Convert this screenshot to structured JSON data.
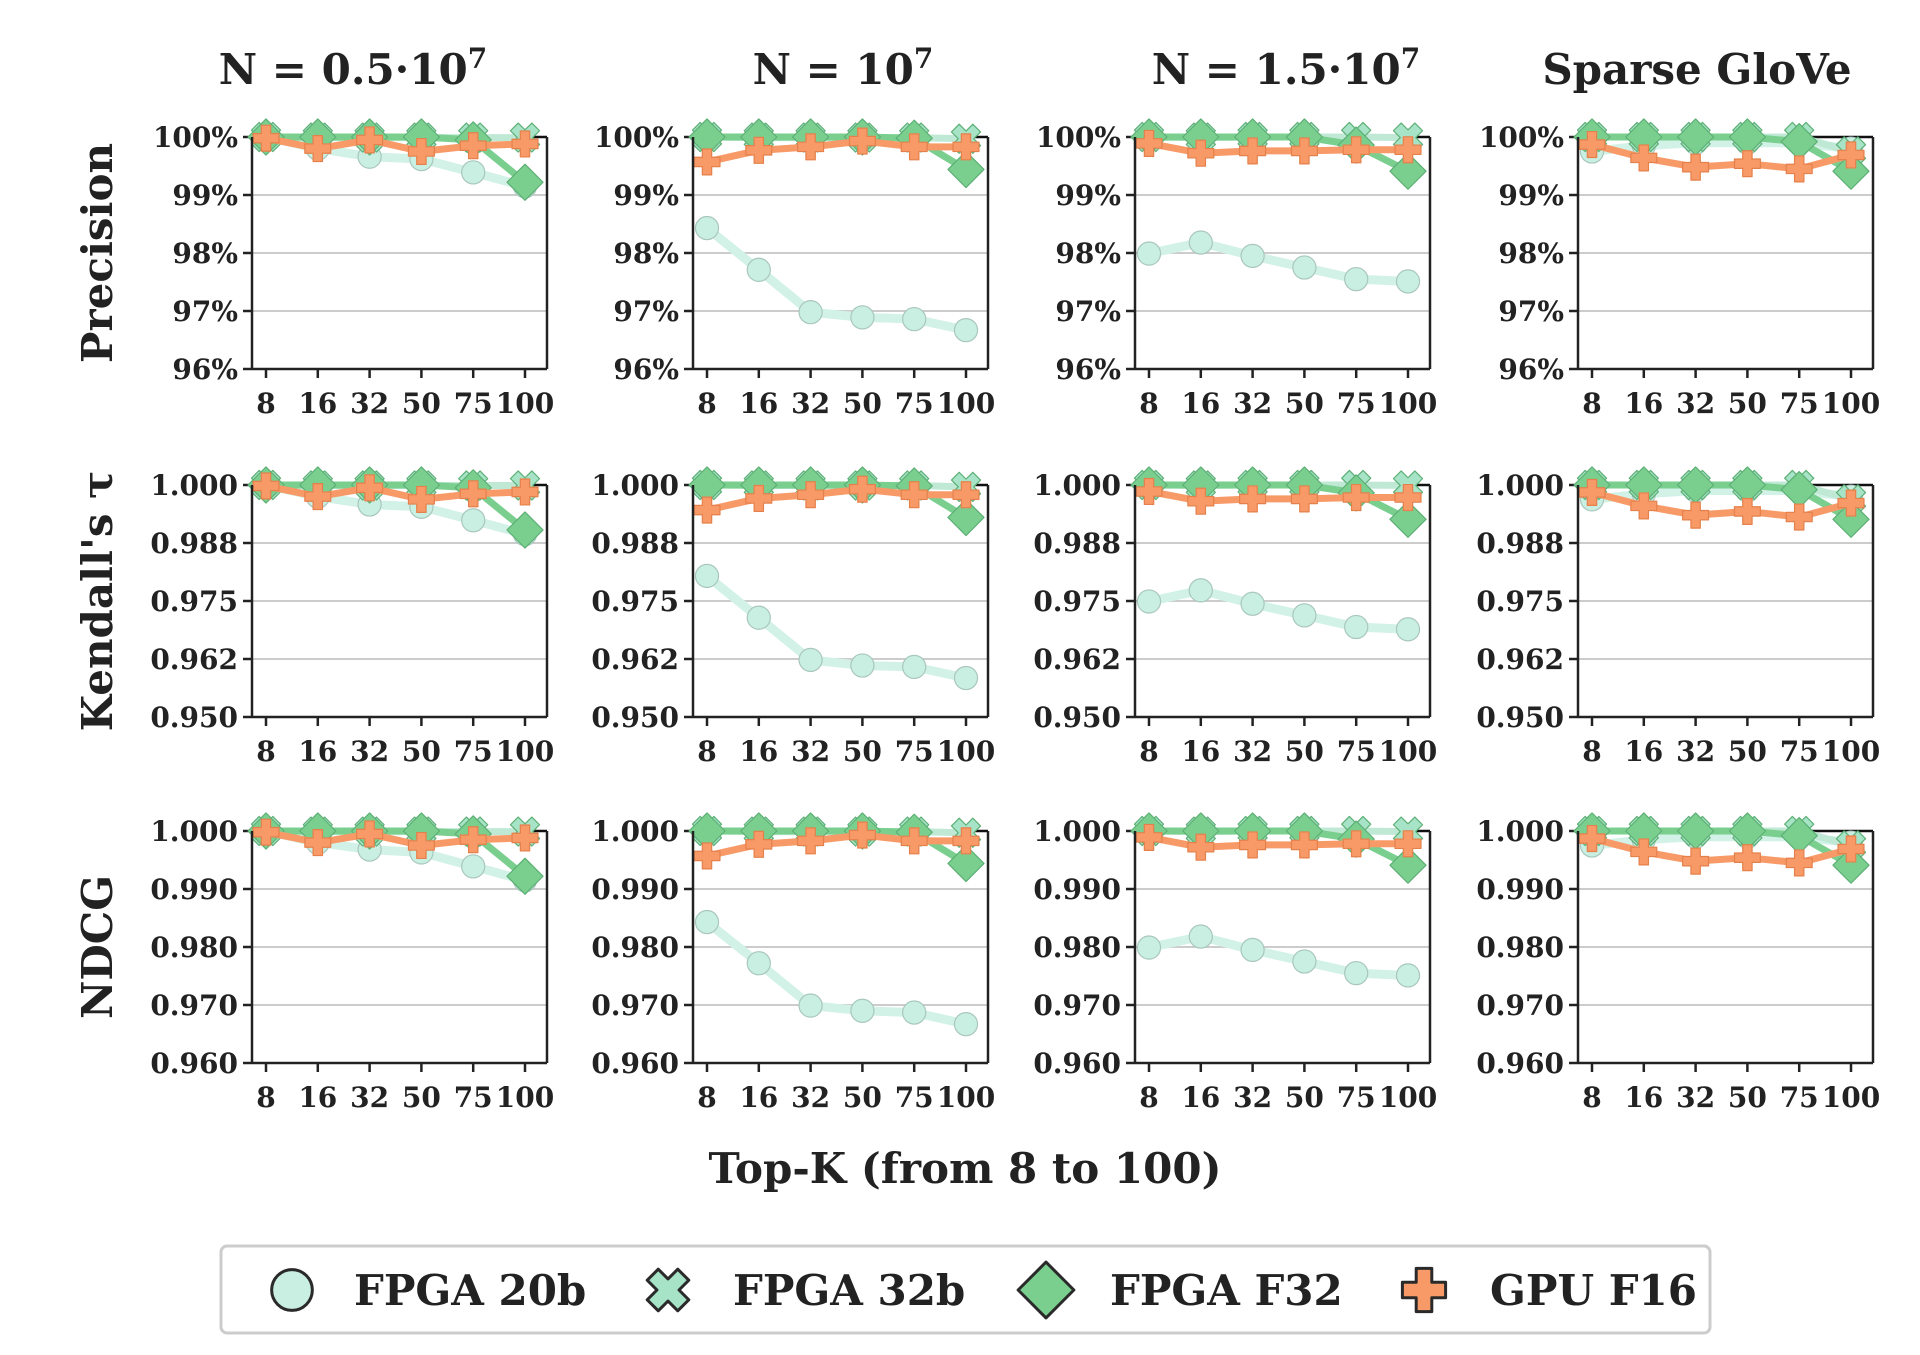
{
  "chart_data": {
    "type": "line",
    "xlabel": "Top-K   (from 8 to 100)",
    "x": [
      "8",
      "16",
      "32",
      "50",
      "75",
      "100"
    ],
    "columns": [
      "N = 0.5·10⁷",
      "N = 10⁷",
      "N = 1.5·10⁷",
      "Sparse GloVe"
    ],
    "rows": [
      {
        "label": "Precision",
        "ylim": [
          0.96,
          1.0
        ],
        "yticks": [
          "100%",
          "99%",
          "98%",
          "97%",
          "96%"
        ],
        "ytick_values": [
          1.0,
          0.99,
          0.98,
          0.97,
          0.96
        ]
      },
      {
        "label": "Kendall's τ",
        "ylim": [
          0.95,
          1.0
        ],
        "yticks": [
          "1.000",
          "0.988",
          "0.975",
          "0.962",
          "0.950"
        ],
        "ytick_values": [
          1.0,
          0.9875,
          0.975,
          0.9625,
          0.95
        ]
      },
      {
        "label": "NDCG",
        "ylim": [
          0.96,
          1.0
        ],
        "yticks": [
          "1.000",
          "0.990",
          "0.980",
          "0.970",
          "0.960"
        ],
        "ytick_values": [
          1.0,
          0.99,
          0.98,
          0.97,
          0.96
        ]
      }
    ],
    "series_styles": [
      {
        "name": "FPGA 20b",
        "marker": "circle",
        "color": "#c9efe2",
        "line": "#d3f2e7"
      },
      {
        "name": "FPGA 32b",
        "marker": "x",
        "color": "#a6e3c7",
        "line": "#bfe9d5"
      },
      {
        "name": "FPGA F32",
        "marker": "diamond",
        "color": "#7acf8f",
        "line": "#7acf8f"
      },
      {
        "name": "GPU F16",
        "marker": "plus",
        "color": "#f79a68",
        "line": "#f79a68"
      }
    ],
    "panels": [
      [
        {
          "series": [
            {
              "name": "FPGA 20b",
              "values": [
                1.0,
                0.998,
                0.9966,
                0.9962,
                0.9939,
                0.9915
              ]
            },
            {
              "name": "FPGA 32b",
              "values": [
                1.0,
                0.9999,
                0.9999,
                0.9999,
                0.9999,
                0.9999
              ]
            },
            {
              "name": "FPGA F32",
              "values": [
                1.0,
                1.0,
                1.0,
                1.0,
                0.9995,
                0.9922
              ]
            },
            {
              "name": "GPU F16",
              "values": [
                0.9998,
                0.998,
                0.9995,
                0.9975,
                0.9985,
                0.9988
              ]
            }
          ]
        },
        {
          "series": [
            {
              "name": "FPGA 20b",
              "values": [
                0.9843,
                0.9771,
                0.9698,
                0.9689,
                0.9686,
                0.9667
              ]
            },
            {
              "name": "FPGA 32b",
              "values": [
                1.0,
                0.9999,
                0.9999,
                0.9999,
                0.9999,
                0.9997
              ]
            },
            {
              "name": "FPGA F32",
              "values": [
                1.0,
                1.0,
                1.0,
                1.0,
                0.9998,
                0.9944
              ]
            },
            {
              "name": "GPU F16",
              "values": [
                0.9957,
                0.9977,
                0.9983,
                0.9993,
                0.9983,
                0.9983
              ]
            }
          ]
        },
        {
          "series": [
            {
              "name": "FPGA 20b",
              "values": [
                0.9799,
                0.9818,
                0.9795,
                0.9775,
                0.9755,
                0.9751
              ]
            },
            {
              "name": "FPGA 32b",
              "values": [
                1.0,
                0.9999,
                1.0,
                1.0,
                1.0,
                0.9999
              ]
            },
            {
              "name": "FPGA F32",
              "values": [
                1.0,
                1.0,
                1.0,
                1.0,
                0.9986,
                0.9941
              ]
            },
            {
              "name": "GPU F16",
              "values": [
                0.9989,
                0.9972,
                0.9976,
                0.9976,
                0.9978,
                0.9978
              ]
            }
          ]
        },
        {
          "series": [
            {
              "name": "FPGA 20b",
              "values": [
                0.9975,
                0.9985,
                0.999,
                0.999,
                0.999,
                0.998
              ]
            },
            {
              "name": "FPGA 32b",
              "values": [
                1.0,
                1.0,
                1.0,
                1.0,
                1.0,
                0.9975
              ]
            },
            {
              "name": "FPGA F32",
              "values": [
                1.0,
                1.0,
                1.0,
                1.0,
                0.9992,
                0.9941
              ]
            },
            {
              "name": "GPU F16",
              "values": [
                0.9987,
                0.9964,
                0.9948,
                0.9954,
                0.9945,
                0.9969
              ]
            }
          ]
        }
      ],
      [
        {
          "series": [
            {
              "name": "FPGA 20b",
              "values": [
                1.0,
                0.9975,
                0.9958,
                0.9953,
                0.9924,
                0.9894
              ]
            },
            {
              "name": "FPGA 32b",
              "values": [
                1.0,
                0.9999,
                0.9999,
                0.9999,
                0.9999,
                0.9999
              ]
            },
            {
              "name": "FPGA F32",
              "values": [
                1.0,
                1.0,
                1.0,
                1.0,
                0.9994,
                0.9903
              ]
            },
            {
              "name": "GPU F16",
              "values": [
                0.9998,
                0.9975,
                0.9994,
                0.9969,
                0.9981,
                0.9985
              ]
            }
          ]
        },
        {
          "series": [
            {
              "name": "FPGA 20b",
              "values": [
                0.9804,
                0.9714,
                0.9623,
                0.9611,
                0.9608,
                0.9584
              ]
            },
            {
              "name": "FPGA 32b",
              "values": [
                1.0,
                0.9999,
                0.9999,
                0.9999,
                0.9999,
                0.9996
              ]
            },
            {
              "name": "FPGA F32",
              "values": [
                1.0,
                1.0,
                1.0,
                1.0,
                0.9998,
                0.993
              ]
            },
            {
              "name": "GPU F16",
              "values": [
                0.9946,
                0.9971,
                0.9979,
                0.9991,
                0.9979,
                0.9979
              ]
            }
          ]
        },
        {
          "series": [
            {
              "name": "FPGA 20b",
              "values": [
                0.9749,
                0.9773,
                0.9744,
                0.9719,
                0.9694,
                0.9689
              ]
            },
            {
              "name": "FPGA 32b",
              "values": [
                1.0,
                0.9999,
                1.0,
                1.0,
                1.0,
                0.9999
              ]
            },
            {
              "name": "FPGA F32",
              "values": [
                1.0,
                1.0,
                1.0,
                1.0,
                0.9983,
                0.9926
              ]
            },
            {
              "name": "GPU F16",
              "values": [
                0.9986,
                0.9965,
                0.997,
                0.997,
                0.9973,
                0.9973
              ]
            }
          ]
        },
        {
          "series": [
            {
              "name": "FPGA 20b",
              "values": [
                0.9969,
                0.9981,
                0.9988,
                0.9988,
                0.9988,
                0.9975
              ]
            },
            {
              "name": "FPGA 32b",
              "values": [
                1.0,
                1.0,
                1.0,
                1.0,
                1.0,
                0.9969
              ]
            },
            {
              "name": "FPGA F32",
              "values": [
                1.0,
                1.0,
                1.0,
                1.0,
                0.999,
                0.9926
              ]
            },
            {
              "name": "GPU F16",
              "values": [
                0.9984,
                0.9955,
                0.9935,
                0.9943,
                0.9931,
                0.9961
              ]
            }
          ]
        }
      ],
      [
        {
          "series": [
            {
              "name": "FPGA 20b",
              "values": [
                1.0,
                0.998,
                0.9968,
                0.9963,
                0.9939,
                0.9915
              ]
            },
            {
              "name": "FPGA 32b",
              "values": [
                1.0,
                0.9999,
                0.9999,
                0.9999,
                0.9999,
                0.9999
              ]
            },
            {
              "name": "FPGA F32",
              "values": [
                1.0,
                1.0,
                1.0,
                1.0,
                0.9995,
                0.9922
              ]
            },
            {
              "name": "GPU F16",
              "values": [
                0.9998,
                0.998,
                0.9995,
                0.9975,
                0.9985,
                0.9988
              ]
            }
          ]
        },
        {
          "series": [
            {
              "name": "FPGA 20b",
              "values": [
                0.9843,
                0.9772,
                0.9699,
                0.969,
                0.9687,
                0.9667
              ]
            },
            {
              "name": "FPGA 32b",
              "values": [
                1.0,
                0.9999,
                0.9999,
                0.9999,
                0.9999,
                0.9997
              ]
            },
            {
              "name": "FPGA F32",
              "values": [
                1.0,
                1.0,
                1.0,
                1.0,
                0.9998,
                0.9944
              ]
            },
            {
              "name": "GPU F16",
              "values": [
                0.9957,
                0.9977,
                0.9983,
                0.9993,
                0.9983,
                0.9983
              ]
            }
          ]
        },
        {
          "series": [
            {
              "name": "FPGA 20b",
              "values": [
                0.9799,
                0.9818,
                0.9795,
                0.9775,
                0.9755,
                0.9751
              ]
            },
            {
              "name": "FPGA 32b",
              "values": [
                1.0,
                0.9999,
                1.0,
                1.0,
                1.0,
                0.9999
              ]
            },
            {
              "name": "FPGA F32",
              "values": [
                1.0,
                1.0,
                1.0,
                1.0,
                0.9986,
                0.9941
              ]
            },
            {
              "name": "GPU F16",
              "values": [
                0.9989,
                0.9972,
                0.9976,
                0.9976,
                0.9978,
                0.9978
              ]
            }
          ]
        },
        {
          "series": [
            {
              "name": "FPGA 20b",
              "values": [
                0.9975,
                0.9985,
                0.999,
                0.999,
                0.999,
                0.998
              ]
            },
            {
              "name": "FPGA 32b",
              "values": [
                1.0,
                1.0,
                1.0,
                1.0,
                1.0,
                0.9975
              ]
            },
            {
              "name": "FPGA F32",
              "values": [
                1.0,
                1.0,
                1.0,
                1.0,
                0.9992,
                0.9941
              ]
            },
            {
              "name": "GPU F16",
              "values": [
                0.9987,
                0.9964,
                0.9948,
                0.9954,
                0.9945,
                0.9969
              ]
            }
          ]
        }
      ]
    ],
    "grid": "horizontal",
    "legend": {
      "placement": "bottom-center",
      "entries": [
        "FPGA 20b",
        "FPGA 32b",
        "FPGA F32",
        "GPU F16"
      ]
    }
  }
}
